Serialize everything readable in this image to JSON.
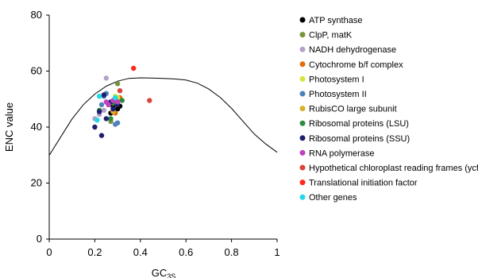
{
  "chart_data": {
    "type": "scatter",
    "xlabel": "GC",
    "xlabel_sub": "3S",
    "ylabel": "ENC value",
    "xlim": [
      0,
      1
    ],
    "ylim": [
      0,
      80
    ],
    "xticks": [
      0,
      0.2,
      0.4,
      0.6,
      0.8,
      1
    ],
    "xtick_labels": [
      "0",
      "0.2",
      "0.4",
      "0.6",
      "0.8",
      "1"
    ],
    "yticks": [
      0,
      20,
      40,
      60,
      80
    ],
    "ytick_labels": [
      "0",
      "20",
      "40",
      "60",
      "80"
    ],
    "grid": false,
    "legend_position": "right",
    "expected_curve": {
      "x": [
        0.0,
        0.05,
        0.1,
        0.15,
        0.2,
        0.25,
        0.3,
        0.35,
        0.4,
        0.45,
        0.5,
        0.55,
        0.6,
        0.65,
        0.7,
        0.75,
        0.8,
        0.85,
        0.9,
        0.95,
        1.0
      ],
      "y": [
        29.9,
        36.4,
        42.9,
        48.0,
        51.8,
        54.6,
        56.4,
        57.4,
        57.6,
        57.5,
        57.4,
        57.2,
        56.8,
        55.7,
        53.6,
        50.6,
        46.7,
        42.1,
        37.5,
        34.0,
        31.0
      ]
    },
    "series": [
      {
        "name": "ATP synthase",
        "color": "#000000",
        "points": [
          [
            0.27,
            45.0
          ],
          [
            0.3,
            46.5
          ],
          [
            0.28,
            47.5
          ],
          [
            0.31,
            47.5
          ],
          [
            0.26,
            48.0
          ]
        ]
      },
      {
        "name": "ClpP, matK",
        "color": "#77933c",
        "points": [
          [
            0.3,
            55.5
          ],
          [
            0.27,
            42.0
          ]
        ]
      },
      {
        "name": "NADH dehydrogenase",
        "color": "#b3a2c7",
        "points": [
          [
            0.25,
            57.5
          ],
          [
            0.22,
            44.5
          ],
          [
            0.2,
            43.0
          ],
          [
            0.24,
            46.0
          ]
        ]
      },
      {
        "name": "Cytochrome b/f complex",
        "color": "#e46c0a",
        "points": [
          [
            0.29,
            45.0
          ],
          [
            0.31,
            50.5
          ],
          [
            0.28,
            49.0
          ]
        ]
      },
      {
        "name": "Photosystem I",
        "color": "#d7e43b",
        "points": [
          [
            0.3,
            50.5
          ],
          [
            0.29,
            51.0
          ],
          [
            0.26,
            48.0
          ]
        ]
      },
      {
        "name": "Photosystem II",
        "color": "#4f81bd",
        "points": [
          [
            0.29,
            41.0
          ],
          [
            0.3,
            41.5
          ],
          [
            0.24,
            51.0
          ],
          [
            0.25,
            52.0
          ],
          [
            0.23,
            48.0
          ]
        ]
      },
      {
        "name": "RubisCO large subunit",
        "color": "#d4b32e",
        "points": [
          [
            0.28,
            45.5
          ]
        ]
      },
      {
        "name": "Ribosomal proteins (LSU)",
        "color": "#2e8b3e",
        "points": [
          [
            0.27,
            43.0
          ],
          [
            0.28,
            48.5
          ],
          [
            0.32,
            49.5
          ],
          [
            0.29,
            50.0
          ],
          [
            0.22,
            46.0
          ]
        ]
      },
      {
        "name": "Ribosomal proteins (SSU)",
        "color": "#1f1f6e",
        "points": [
          [
            0.23,
            37.0
          ],
          [
            0.25,
            43.0
          ],
          [
            0.2,
            40.0
          ],
          [
            0.22,
            45.5
          ],
          [
            0.27,
            49.0
          ],
          [
            0.24,
            51.5
          ],
          [
            0.3,
            48.0
          ],
          [
            0.28,
            46.5
          ]
        ]
      },
      {
        "name": "RNA polymerase",
        "color": "#c040c0",
        "points": [
          [
            0.26,
            48.0
          ],
          [
            0.25,
            49.0
          ],
          [
            0.28,
            49.5
          ],
          [
            0.3,
            49.0
          ]
        ]
      },
      {
        "name": "Hypothetical chloroplast reading frames (ycf)",
        "color": "#d9453a",
        "points": [
          [
            0.44,
            49.5
          ],
          [
            0.31,
            53.0
          ]
        ]
      },
      {
        "name": "Translational initiation factor",
        "color": "#ff2a1a",
        "points": [
          [
            0.37,
            61.0
          ]
        ]
      },
      {
        "name": "Other genes",
        "color": "#22d8e8",
        "points": [
          [
            0.22,
            51.0
          ],
          [
            0.21,
            42.5
          ],
          [
            0.29,
            50.5
          ]
        ]
      }
    ]
  }
}
